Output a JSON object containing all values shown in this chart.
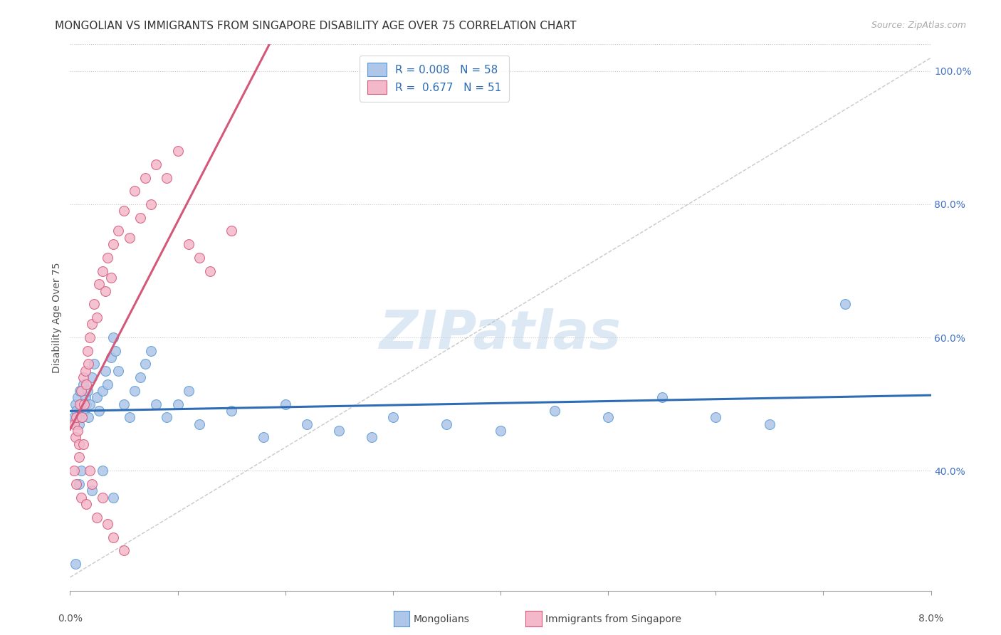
{
  "title": "MONGOLIAN VS IMMIGRANTS FROM SINGAPORE DISABILITY AGE OVER 75 CORRELATION CHART",
  "source": "Source: ZipAtlas.com",
  "ylabel": "Disability Age Over 75",
  "xlim": [
    0.0,
    8.0
  ],
  "ylim": [
    22.0,
    104.0
  ],
  "yticks": [
    40.0,
    60.0,
    80.0,
    100.0
  ],
  "mongolian_color": "#aec6e8",
  "mongolian_edge": "#5b9bd5",
  "singapore_color": "#f4b8cb",
  "singapore_edge": "#d4587a",
  "blue_line_color": "#2e6db5",
  "red_line_color": "#d4587a",
  "background_color": "#ffffff",
  "grid_color": "#c8c8c8",
  "title_fontsize": 11,
  "axis_label_fontsize": 10,
  "tick_fontsize": 10,
  "legend_fontsize": 11,
  "watermark": "ZIPatlas",
  "watermark_color": "#dce9f5",
  "watermark_fontsize": 54,
  "mong_x": [
    0.04,
    0.05,
    0.06,
    0.07,
    0.08,
    0.09,
    0.1,
    0.11,
    0.12,
    0.13,
    0.14,
    0.15,
    0.16,
    0.17,
    0.18,
    0.2,
    0.22,
    0.25,
    0.27,
    0.3,
    0.33,
    0.35,
    0.38,
    0.4,
    0.42,
    0.45,
    0.5,
    0.55,
    0.6,
    0.65,
    0.7,
    0.75,
    0.8,
    0.9,
    1.0,
    1.1,
    1.2,
    1.5,
    1.8,
    2.0,
    2.2,
    2.5,
    2.8,
    3.0,
    3.5,
    4.0,
    4.5,
    5.0,
    5.5,
    6.0,
    6.5,
    7.2,
    0.05,
    0.08,
    0.1,
    0.2,
    0.3,
    0.4
  ],
  "mong_y": [
    48.0,
    50.0,
    49.0,
    51.0,
    47.0,
    52.0,
    50.0,
    48.0,
    53.0,
    49.0,
    51.0,
    50.0,
    52.0,
    48.0,
    50.0,
    54.0,
    56.0,
    51.0,
    49.0,
    52.0,
    55.0,
    53.0,
    57.0,
    60.0,
    58.0,
    55.0,
    50.0,
    48.0,
    52.0,
    54.0,
    56.0,
    58.0,
    50.0,
    48.0,
    50.0,
    52.0,
    47.0,
    49.0,
    45.0,
    50.0,
    47.0,
    46.0,
    45.0,
    48.0,
    47.0,
    46.0,
    49.0,
    48.0,
    51.0,
    48.0,
    47.0,
    65.0,
    26.0,
    38.0,
    40.0,
    37.0,
    40.0,
    36.0
  ],
  "sing_x": [
    0.04,
    0.05,
    0.06,
    0.07,
    0.08,
    0.09,
    0.1,
    0.11,
    0.12,
    0.13,
    0.14,
    0.15,
    0.16,
    0.17,
    0.18,
    0.2,
    0.22,
    0.25,
    0.27,
    0.3,
    0.33,
    0.35,
    0.38,
    0.4,
    0.45,
    0.5,
    0.55,
    0.6,
    0.65,
    0.7,
    0.75,
    0.8,
    0.9,
    1.0,
    1.1,
    1.2,
    1.3,
    1.5,
    0.04,
    0.06,
    0.08,
    0.1,
    0.12,
    0.15,
    0.18,
    0.2,
    0.25,
    0.3,
    0.35,
    0.4,
    0.5
  ],
  "sing_y": [
    47.0,
    45.0,
    48.0,
    46.0,
    44.0,
    50.0,
    52.0,
    48.0,
    54.0,
    50.0,
    55.0,
    53.0,
    58.0,
    56.0,
    60.0,
    62.0,
    65.0,
    63.0,
    68.0,
    70.0,
    67.0,
    72.0,
    69.0,
    74.0,
    76.0,
    79.0,
    75.0,
    82.0,
    78.0,
    84.0,
    80.0,
    86.0,
    84.0,
    88.0,
    74.0,
    72.0,
    70.0,
    76.0,
    40.0,
    38.0,
    42.0,
    36.0,
    44.0,
    35.0,
    40.0,
    38.0,
    33.0,
    36.0,
    32.0,
    30.0,
    28.0
  ]
}
